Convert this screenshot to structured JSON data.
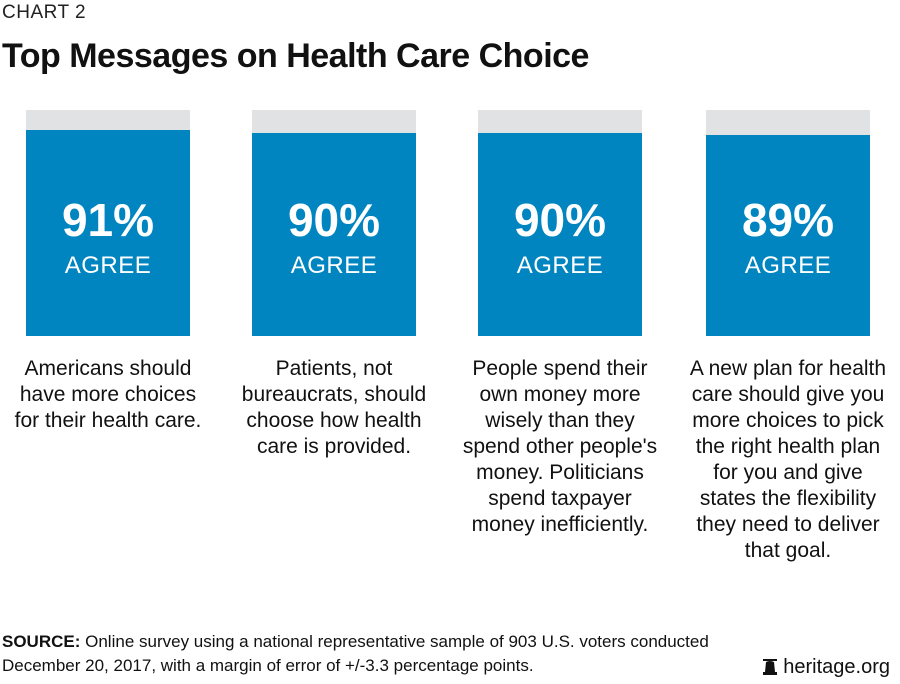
{
  "header": {
    "chart_label": "CHART 2",
    "title": "Top Messages on Health Care Choice"
  },
  "chart_data": {
    "type": "bar",
    "title": "Top Messages on Health Care Choice",
    "ylim": [
      0,
      100
    ],
    "unit_label": "AGREE",
    "categories": [
      "Americans should have more choices for their health care.",
      "Patients, not bureaucrats, should choose how health care is provided.",
      "People spend their own money more wisely than they spend other people's money. Politicians spend taxpayer money inefficiently.",
      "A new plan for health care should give you more choices to pick the right health plan for you and give states the flexibility they need to deliver that goal."
    ],
    "values": [
      91,
      90,
      90,
      89
    ],
    "value_labels": [
      "91%",
      "90%",
      "90%",
      "89%"
    ],
    "colors": {
      "fill": "#0085c0",
      "track": "#e1e2e4"
    }
  },
  "footer": {
    "source_label": "SOURCE:",
    "source_text": " Online survey using a national representative sample of 903 U.S. voters conducted December 20, 2017, with a margin of error of +/-3.3 percentage points.",
    "brand": "heritage.org",
    "brand_icon": "bell-icon"
  }
}
